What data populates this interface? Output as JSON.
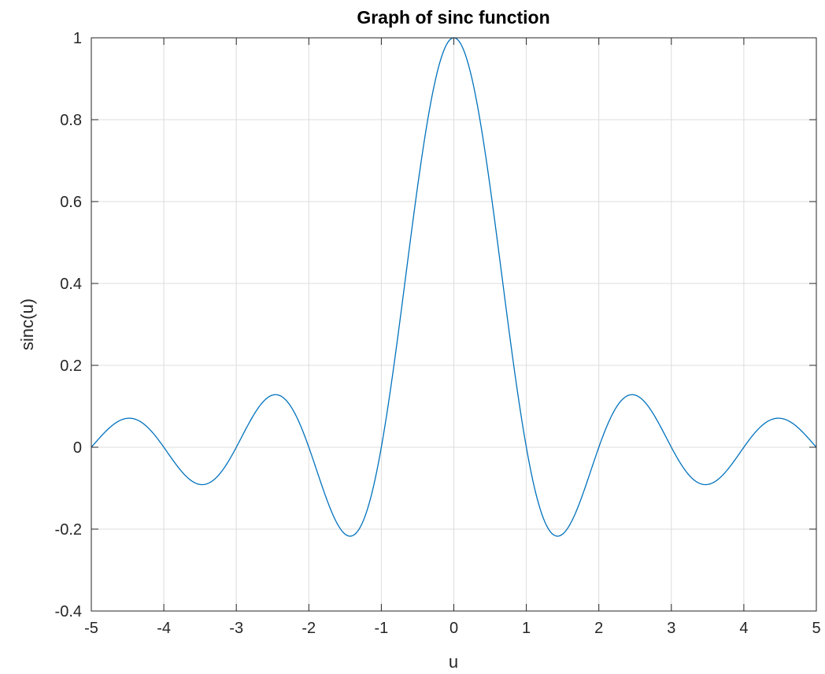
{
  "chart_data": {
    "type": "line",
    "title": "Graph of sinc function",
    "xlabel": "u",
    "ylabel": "sinc(u)",
    "xlim": [
      -5,
      5
    ],
    "ylim": [
      -0.4,
      1
    ],
    "xticks": [
      -5,
      -4,
      -3,
      -2,
      -1,
      0,
      1,
      2,
      3,
      4,
      5
    ],
    "xtick_labels": [
      "-5",
      "-4",
      "-3",
      "-2",
      "-1",
      "0",
      "1",
      "2",
      "3",
      "4",
      "5"
    ],
    "yticks": [
      -0.4,
      -0.2,
      0,
      0.2,
      0.4,
      0.6,
      0.8,
      1
    ],
    "ytick_labels": [
      "-0.4",
      "-0.2",
      "0",
      "0.2",
      "0.4",
      "0.6",
      "0.8",
      "1"
    ],
    "grid": true,
    "series": [
      {
        "function": "sin(pi*u)/(pi*u)",
        "x": [
          -5,
          -4.75,
          -4.5,
          -4.25,
          -4,
          -3.75,
          -3.5,
          -3.25,
          -3,
          -2.75,
          -2.5,
          -2.25,
          -2,
          -1.75,
          -1.5,
          -1.25,
          -1,
          -0.75,
          -0.5,
          -0.25,
          0,
          0.25,
          0.5,
          0.75,
          1,
          1.25,
          1.5,
          1.75,
          2,
          2.25,
          2.5,
          2.75,
          3,
          3.25,
          3.5,
          3.75,
          4,
          4.25,
          4.5,
          4.75,
          5
        ],
        "y": [
          0,
          0.047,
          0.071,
          0.053,
          0,
          -0.06,
          -0.091,
          -0.069,
          0,
          0.082,
          0.127,
          0.1,
          0,
          -0.129,
          -0.212,
          -0.18,
          0,
          0.3,
          0.637,
          0.9,
          1,
          0.9,
          0.637,
          0.3,
          0,
          -0.18,
          -0.212,
          -0.129,
          0,
          0.1,
          0.127,
          0.082,
          0,
          -0.069,
          -0.091,
          -0.06,
          0,
          0.053,
          0.071,
          0.047,
          0
        ]
      }
    ]
  },
  "colors": {
    "line": "#0072bd",
    "grid": "#dcdcdc",
    "axis": "#262626",
    "background": "#ffffff"
  }
}
